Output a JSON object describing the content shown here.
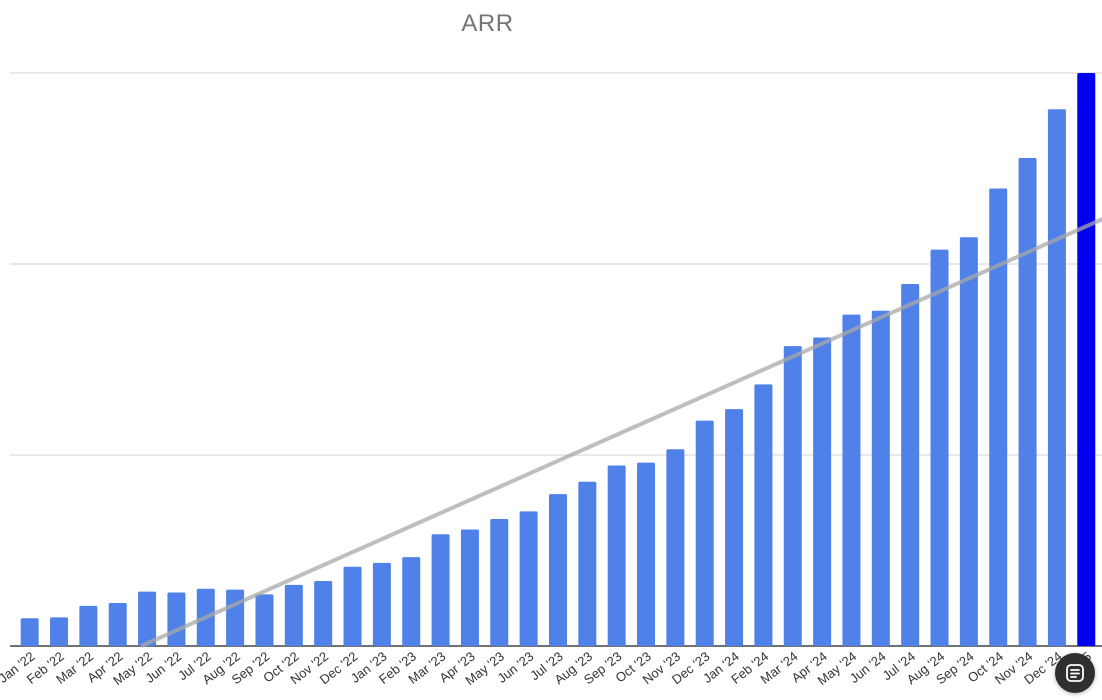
{
  "chart_data": {
    "type": "bar",
    "title": "ARR",
    "xlabel": "",
    "ylabel": "",
    "ylim": [
      0,
      60
    ],
    "gridlines_y": [
      20,
      40,
      60
    ],
    "grid": true,
    "legend": "none",
    "categories": [
      "Jan '22",
      "Feb '22",
      "Mar '22",
      "Apr '22",
      "May '22",
      "Jun '22",
      "Jul '22",
      "Aug '22",
      "Sep '22",
      "Oct '22",
      "Nov '22",
      "Dec '22",
      "Jan '23",
      "Feb '23",
      "Mar '23",
      "Apr '23",
      "May '23",
      "Jun '23",
      "Jul '23",
      "Aug '23",
      "Sep '23",
      "Oct '23",
      "Nov '23",
      "Dec '23",
      "Jan '24",
      "Feb '24",
      "Mar '24",
      "Apr '24",
      "May '24",
      "Jun '24",
      "Jul '24",
      "Aug '24",
      "Sep '24",
      "Oct '24",
      "Nov '24",
      "Dec '24",
      "Jan '25"
    ],
    "values": [
      2.9,
      3.0,
      4.2,
      4.5,
      5.7,
      5.6,
      6.0,
      5.9,
      5.4,
      6.4,
      6.8,
      8.3,
      8.7,
      9.3,
      11.7,
      12.2,
      13.3,
      14.1,
      15.9,
      17.2,
      18.9,
      19.2,
      20.6,
      23.6,
      24.8,
      27.4,
      31.4,
      32.3,
      34.7,
      35.1,
      37.9,
      41.5,
      42.8,
      47.9,
      51.1,
      56.2,
      60.0
    ],
    "highlight_index": 36,
    "trendline": {
      "start": [
        3.8,
        0.0
      ],
      "end": [
        38.6,
        47.5
      ]
    },
    "colors": {
      "bar": "#4f81e8",
      "highlight": "#0000ee",
      "trend": "#a8a8a8",
      "grid": "#e2e2e2"
    }
  },
  "fab": {
    "icon": "document-list-icon"
  }
}
